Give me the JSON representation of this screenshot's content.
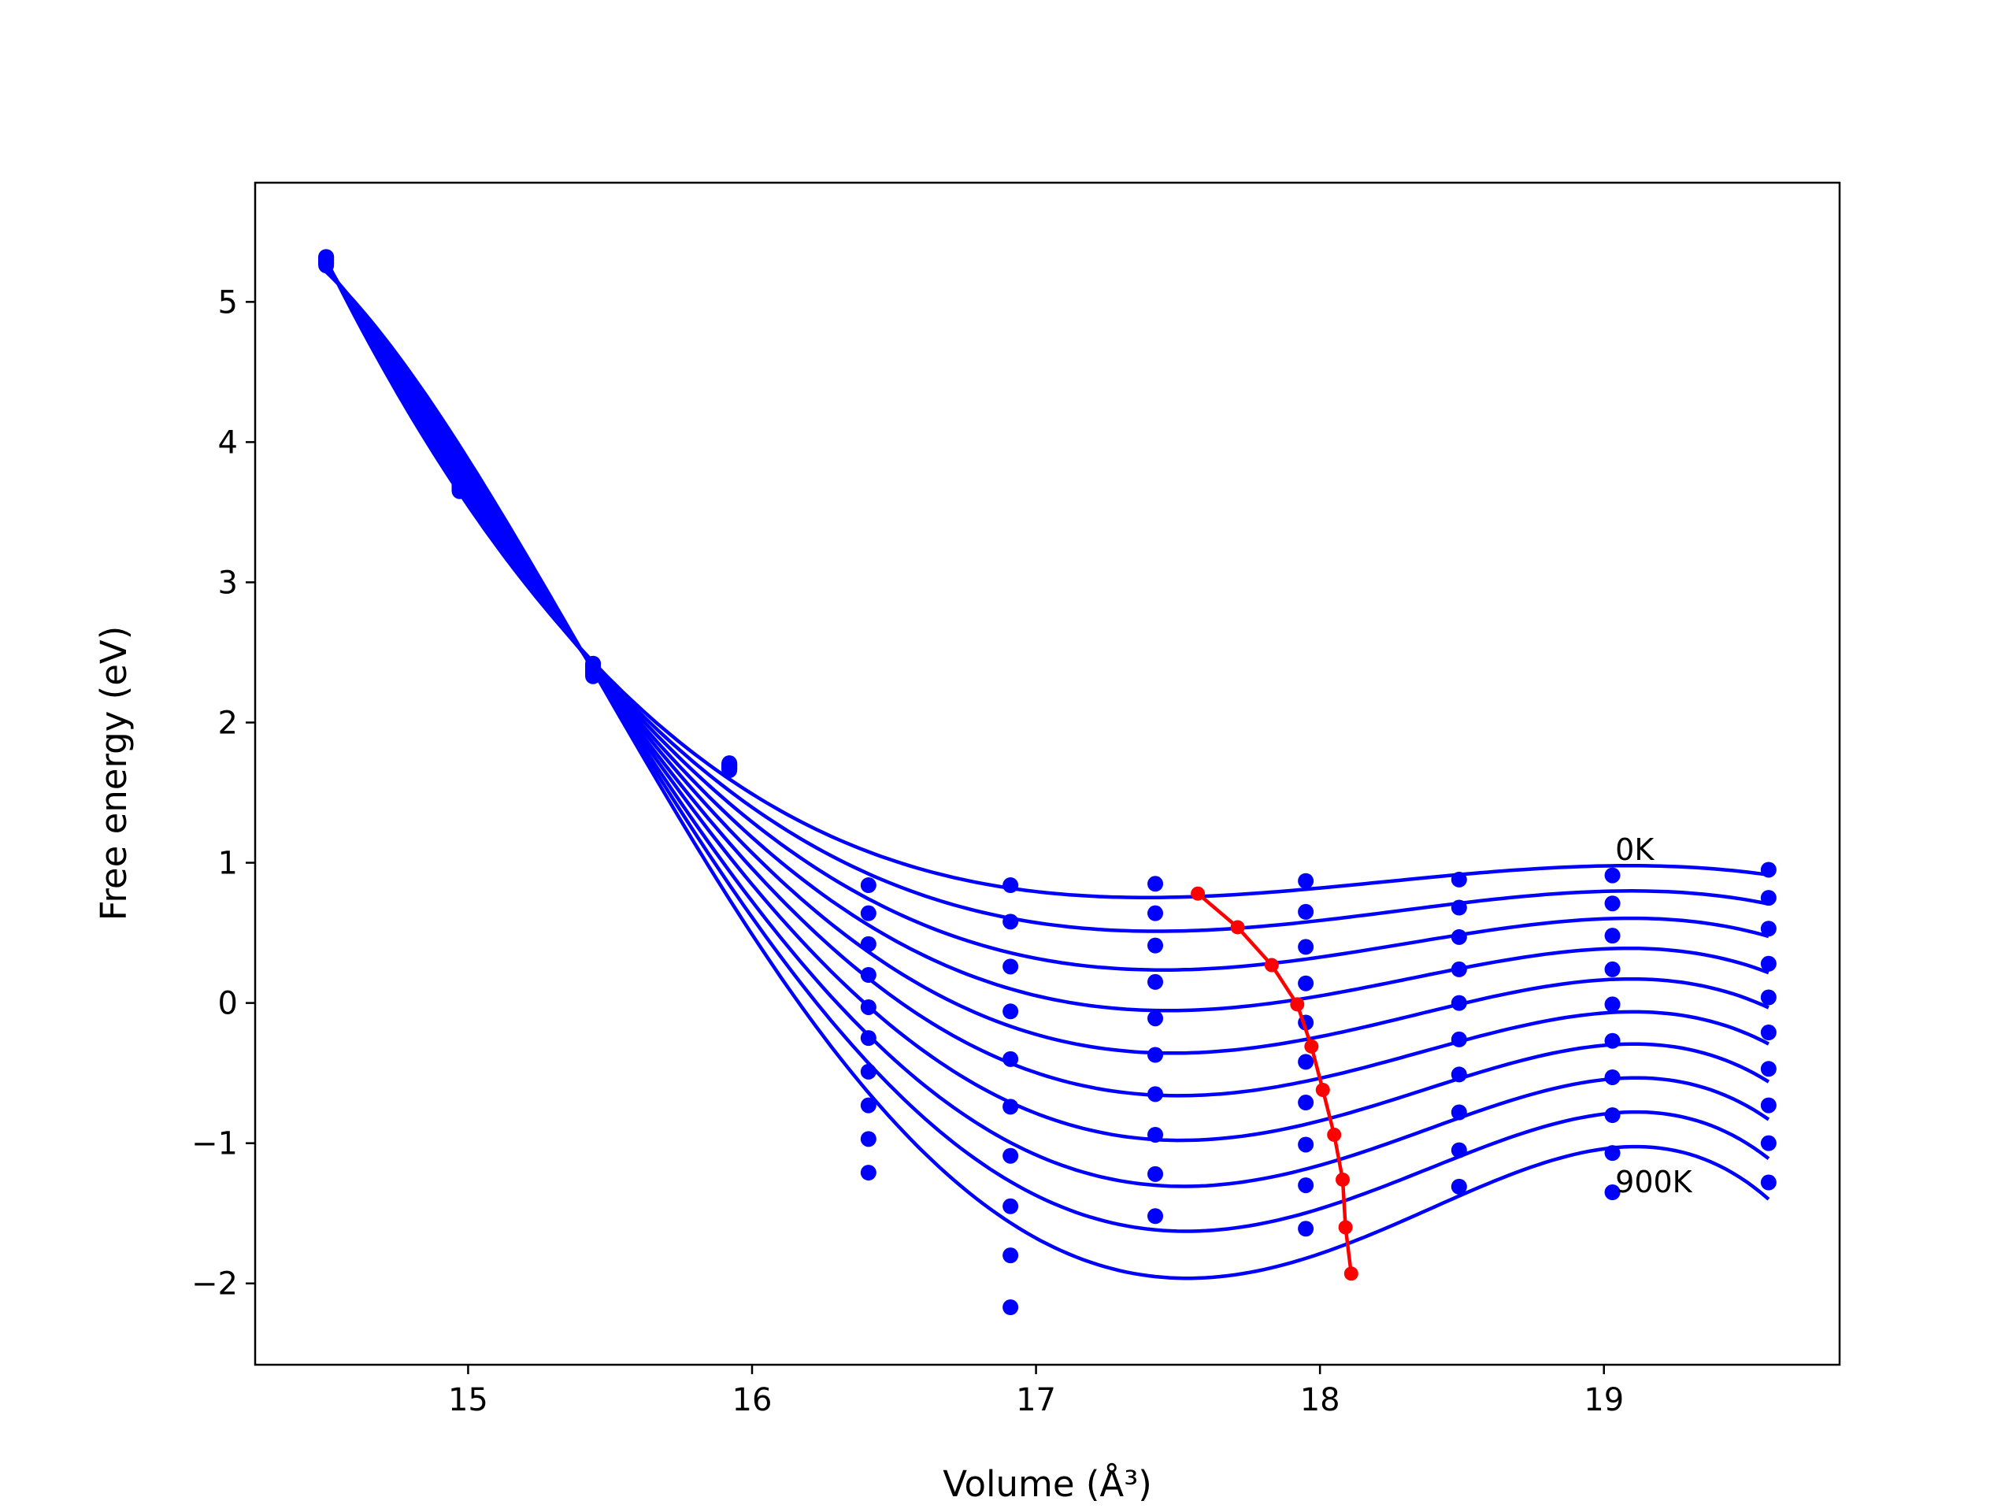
{
  "chart_data": {
    "type": "line",
    "xlabel": "Volume (Å³)",
    "ylabel": "Free energy (eV)",
    "xlim": [
      14.25,
      19.83
    ],
    "ylim": [
      -2.58,
      5.85
    ],
    "x_ticks": [
      15,
      16,
      17,
      18,
      19
    ],
    "y_ticks": [
      -2,
      -1,
      0,
      1,
      2,
      3,
      4,
      5
    ],
    "x_tick_labels": [
      "15",
      "16",
      "17",
      "18",
      "19"
    ],
    "y_tick_labels": [
      "−2",
      "−1",
      "0",
      "1",
      "2",
      "3",
      "4",
      "5"
    ],
    "grid": false,
    "colors": {
      "curves": "#0000ff",
      "minima": "#ff0000"
    },
    "annotations": [
      {
        "text": "0K",
        "x": 19.04,
        "y": 1.02
      },
      {
        "text": "900K",
        "x": 19.04,
        "y": -1.35
      }
    ],
    "volumes": [
      14.5,
      14.97,
      15.44,
      15.92,
      16.41,
      16.91,
      17.42,
      17.95,
      18.49,
      19.03,
      19.58
    ],
    "series": [
      {
        "values": [
          5.26,
          3.7,
          2.42,
          1.71,
          0.84,
          0.84,
          0.85,
          0.87,
          0.88,
          0.91,
          0.95
        ]
      },
      {
        "values": [
          5.27,
          3.69,
          2.41,
          1.7,
          0.64,
          0.58,
          0.64,
          0.65,
          0.68,
          0.71,
          0.75
        ]
      },
      {
        "values": [
          5.28,
          3.69,
          2.4,
          1.7,
          0.42,
          0.26,
          0.41,
          0.4,
          0.47,
          0.48,
          0.53
        ]
      },
      {
        "values": [
          5.28,
          3.68,
          2.39,
          1.69,
          0.2,
          -0.06,
          0.15,
          0.14,
          0.24,
          0.24,
          0.28
        ]
      },
      {
        "values": [
          5.29,
          3.68,
          2.38,
          1.69,
          -0.03,
          -0.4,
          -0.11,
          -0.14,
          0.0,
          -0.01,
          0.04
        ]
      },
      {
        "values": [
          5.3,
          3.67,
          2.37,
          1.68,
          -0.25,
          -0.74,
          -0.37,
          -0.42,
          -0.26,
          -0.27,
          -0.21
        ]
      },
      {
        "values": [
          5.3,
          3.67,
          2.36,
          1.68,
          -0.49,
          -1.09,
          -0.65,
          -0.71,
          -0.51,
          -0.53,
          -0.47
        ]
      },
      {
        "values": [
          5.31,
          3.66,
          2.35,
          1.67,
          -0.73,
          -1.45,
          -0.94,
          -1.01,
          -0.78,
          -0.8,
          -0.73
        ]
      },
      {
        "values": [
          5.32,
          3.66,
          2.34,
          1.67,
          -0.97,
          -1.8,
          -1.22,
          -1.3,
          -1.05,
          -1.07,
          -1.0
        ]
      },
      {
        "values": [
          5.32,
          3.65,
          2.33,
          1.66,
          -1.21,
          -2.17,
          -1.52,
          -1.61,
          -1.31,
          -1.35,
          -1.28
        ]
      }
    ],
    "minima": {
      "x": [
        17.57,
        17.71,
        17.83,
        17.92,
        17.97,
        18.01,
        18.05,
        18.08,
        18.09,
        18.11
      ],
      "y": [
        0.78,
        0.54,
        0.27,
        -0.01,
        -0.31,
        -0.62,
        -0.94,
        -1.26,
        -1.6,
        -1.93
      ]
    }
  }
}
